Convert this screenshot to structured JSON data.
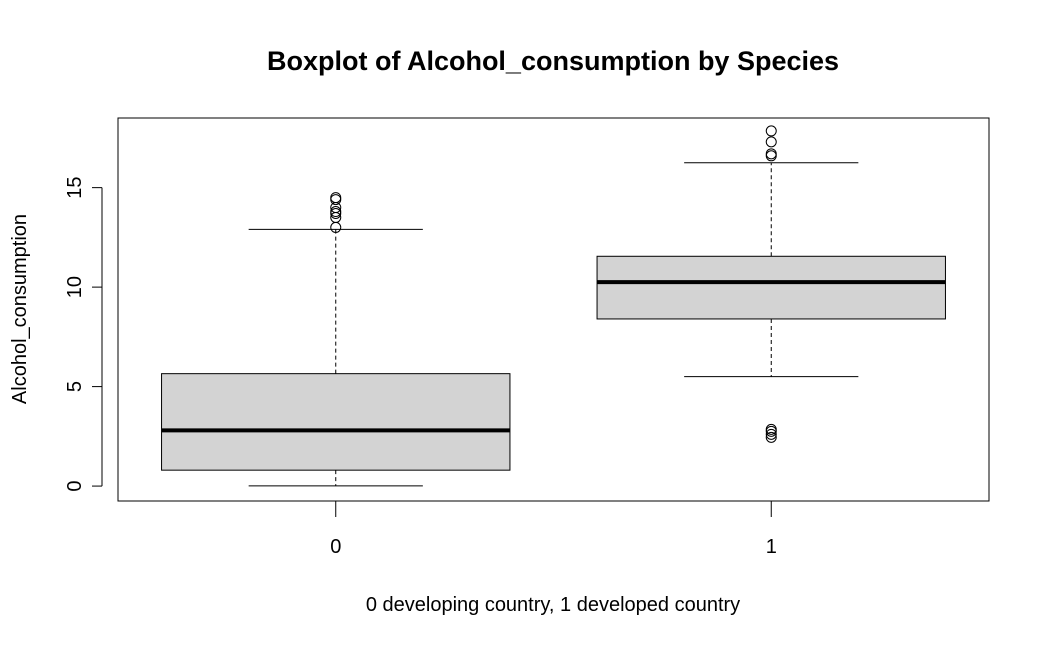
{
  "chart_data": {
    "type": "boxplot",
    "title": "Boxplot of Alcohol_consumption by Species",
    "xlabel": "0 developing country, 1 developed country",
    "ylabel": "Alcohol_consumption",
    "ylim": [
      -0.75,
      18.5
    ],
    "yticks": [
      0,
      5,
      10,
      15
    ],
    "ytick_labels": [
      "0",
      "5",
      "10",
      "15"
    ],
    "categories": [
      "0",
      "1"
    ],
    "box_fill": "#d3d3d3",
    "stroke": "#000000",
    "boxes": [
      {
        "category": "0",
        "whisker_low": 0.01,
        "q1": 0.8,
        "median": 2.8,
        "q3": 5.65,
        "whisker_high": 12.9,
        "outliers": [
          13.0,
          13.5,
          13.7,
          13.8,
          14.0,
          14.4,
          14.5
        ]
      },
      {
        "category": "1",
        "whisker_low": 5.5,
        "q1": 8.4,
        "median": 10.25,
        "q3": 11.55,
        "whisker_high": 16.25,
        "outliers": [
          2.45,
          2.6,
          2.75,
          2.85,
          16.6,
          16.7,
          17.3,
          17.85
        ]
      }
    ]
  }
}
